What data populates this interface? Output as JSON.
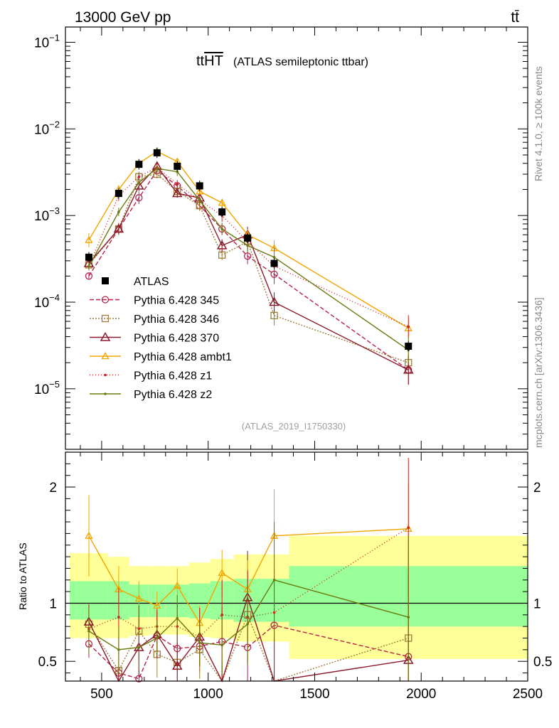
{
  "header": {
    "left": "13000 GeV pp",
    "right": "tt̄"
  },
  "side_labels": {
    "rivet": "Rivet 4.1.0, ≥ 100k events",
    "mcplots": "mcplots.cern.ch [arXiv:1306.3436]"
  },
  "chart_data": {
    "type": "line",
    "title_main": "tt",
    "title_over": "HT",
    "title_sub": "(ATLAS semileptonic ttbar)",
    "analysis_id": "(ATLAS_2019_I1750330)",
    "xlabel": "",
    "ylabel_ratio": "Ratio to ATLAS",
    "xlim": [
      330,
      2500
    ],
    "ylim_top": [
      2e-06,
      0.15
    ],
    "ylim_ratio": [
      0.33,
      2.3
    ],
    "yscale_top": "log",
    "x_ticks": [
      "500",
      "1000",
      "1500",
      "2000",
      "2500"
    ],
    "y_ticks_top": [
      {
        "value": 0.1,
        "base": "10",
        "exp": "−1"
      },
      {
        "value": 0.01,
        "base": "10",
        "exp": "−2"
      },
      {
        "value": 0.001,
        "base": "10",
        "exp": "−3"
      },
      {
        "value": 0.0001,
        "base": "10",
        "exp": "−4"
      },
      {
        "value": 1e-05,
        "base": "10",
        "exp": "−5"
      }
    ],
    "y_ticks_ratio": [
      {
        "value": 0.5,
        "label": "0.5"
      },
      {
        "value": 1,
        "label": "1"
      },
      {
        "value": 2,
        "label": "2"
      }
    ],
    "legend_position": "center-left",
    "x": [
      440,
      580,
      675,
      760,
      855,
      960,
      1065,
      1185,
      1310,
      1940
    ],
    "bin_edges": [
      350,
      530,
      630,
      720,
      800,
      910,
      1010,
      1120,
      1250,
      1380,
      2500
    ],
    "data": {
      "name": "ATLAS",
      "values": [
        0.00033,
        0.0018,
        0.0039,
        0.0053,
        0.0037,
        0.0022,
        0.0011,
        0.00055,
        0.00028,
        3.1e-05
      ],
      "ratio_band_inner": [
        [
          0.86,
          1.19
        ],
        [
          0.86,
          1.19
        ],
        [
          0.88,
          1.16
        ],
        [
          0.88,
          1.16
        ],
        [
          0.88,
          1.16
        ],
        [
          0.87,
          1.17
        ],
        [
          0.86,
          1.19
        ],
        [
          0.84,
          1.21
        ],
        [
          0.84,
          1.21
        ],
        [
          0.8,
          1.32
        ]
      ],
      "ratio_band_outer": [
        [
          0.7,
          1.43
        ],
        [
          0.7,
          1.4
        ],
        [
          0.72,
          1.32
        ],
        [
          0.73,
          1.32
        ],
        [
          0.73,
          1.32
        ],
        [
          0.71,
          1.35
        ],
        [
          0.7,
          1.38
        ],
        [
          0.67,
          1.42
        ],
        [
          0.67,
          1.42
        ],
        [
          0.52,
          1.58
        ]
      ]
    },
    "series": [
      {
        "name": "Pythia 6.428 345",
        "color": "#b5234c",
        "dash": "6,3",
        "marker": "circle",
        "values": [
          0.0002,
          0.0007,
          0.0016,
          0.0033,
          0.0022,
          0.0013,
          0.0007,
          0.00034,
          0.00021,
          1.65e-05
        ],
        "ratio": [
          0.65,
          0.4,
          0.35,
          0.72,
          0.61,
          0.63,
          0.67,
          0.62,
          0.81,
          0.54
        ],
        "ratio_err": [
          0.12,
          0.25,
          0.3,
          0.2,
          0.2,
          0.22,
          0.3,
          0.4,
          0.5,
          0.8
        ]
      },
      {
        "name": "Pythia 6.428 346",
        "color": "#a07d3c",
        "dash": "2,2",
        "marker": "square",
        "values": [
          0.00027,
          0.0007,
          0.0028,
          0.003,
          0.0019,
          0.0013,
          0.00035,
          0.0005,
          7e-05,
          2e-05
        ],
        "ratio": [
          0.82,
          0.42,
          0.76,
          0.56,
          0.49,
          0.6,
          0.32,
          0.9,
          0.25,
          0.7
        ],
        "ratio_err": [
          0.15,
          0.3,
          0.25,
          0.2,
          0.2,
          0.25,
          0.25,
          0.4,
          0.5,
          0.75
        ]
      },
      {
        "name": "Pythia 6.428 370",
        "color": "#8b1a2a",
        "dash": "",
        "marker": "triangle",
        "values": [
          0.00028,
          0.0007,
          0.0022,
          0.0037,
          0.0018,
          0.0016,
          0.00045,
          0.0006,
          0.0001,
          1.65e-05
        ],
        "ratio": [
          0.84,
          0.2,
          0.62,
          0.73,
          0.46,
          0.71,
          0.2,
          1.05,
          0.25,
          0.51
        ],
        "ratio_err": [
          0.15,
          0.25,
          0.25,
          0.2,
          0.2,
          0.25,
          0.3,
          0.4,
          0.5,
          0.8
        ]
      },
      {
        "name": "Pythia 6.428 ambt1",
        "color": "#f0a500",
        "dash": "",
        "marker": "triangle-small",
        "values": [
          0.00052,
          0.002,
          0.004,
          0.0055,
          0.0042,
          0.0019,
          0.0014,
          0.0006,
          0.00042,
          5e-05
        ],
        "ratio": [
          1.58,
          1.12,
          1.04,
          0.98,
          1.15,
          0.83,
          1.26,
          1.12,
          1.58,
          1.64
        ],
        "ratio_err": [
          0.35,
          0.2,
          0.15,
          0.12,
          0.15,
          0.15,
          0.2,
          0.25,
          0.4,
          0.4
        ]
      },
      {
        "name": "Pythia 6.428 z1",
        "color": "#cc1f1f",
        "dash": "1,3",
        "marker": "dot",
        "values": [
          0.00026,
          0.0017,
          0.0028,
          0.0036,
          0.0023,
          0.0015,
          0.001,
          0.0005,
          0.00026,
          5.2e-05
        ],
        "ratio": [
          0.78,
          0.88,
          0.78,
          0.8,
          0.8,
          0.71,
          0.9,
          0.88,
          0.92,
          1.65
        ],
        "ratio_err": [
          0.2,
          0.25,
          0.2,
          0.15,
          0.2,
          0.25,
          0.3,
          0.4,
          0.5,
          0.6
        ]
      },
      {
        "name": "Pythia 6.428 z2",
        "color": "#6b7a10",
        "dash": "",
        "marker": "dot",
        "values": [
          0.00026,
          0.0011,
          0.0024,
          0.0035,
          0.0032,
          0.0015,
          0.0007,
          0.00045,
          0.00033,
          2.8e-05
        ],
        "ratio": [
          0.76,
          0.6,
          0.62,
          0.7,
          0.87,
          0.66,
          0.64,
          0.82,
          1.2,
          0.88
        ],
        "ratio_err": [
          0.2,
          0.2,
          0.2,
          0.15,
          0.2,
          0.2,
          0.25,
          0.35,
          0.5,
          0.7
        ]
      }
    ]
  }
}
